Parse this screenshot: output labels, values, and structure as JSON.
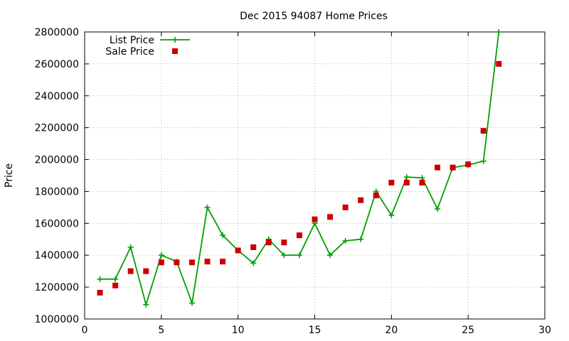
{
  "chart_data": {
    "type": "line",
    "title": "Dec 2015 94087 Home Prices",
    "xlabel": "",
    "ylabel": "Price",
    "xlim": [
      0,
      30
    ],
    "ylim": [
      1000000,
      2800000
    ],
    "xticks": [
      0,
      5,
      10,
      15,
      20,
      25,
      30
    ],
    "yticks": [
      1000000,
      1200000,
      1400000,
      1600000,
      1800000,
      2000000,
      2200000,
      2400000,
      2600000,
      2800000
    ],
    "grid": true,
    "legend_position": "top-left",
    "series": [
      {
        "name": "List Price",
        "kind": "line-with-plus-markers",
        "color": "#00a000",
        "x": [
          1,
          2,
          3,
          4,
          5,
          6,
          7,
          8,
          9,
          10,
          11,
          12,
          13,
          14,
          15,
          16,
          17,
          18,
          19,
          20,
          21,
          22,
          23,
          24,
          25,
          26,
          27
        ],
        "values": [
          1250000,
          1250000,
          1450000,
          1090000,
          1400000,
          1360000,
          1100000,
          1700000,
          1525000,
          1430000,
          1350000,
          1500000,
          1400000,
          1400000,
          1600000,
          1400000,
          1490000,
          1500000,
          1800000,
          1650000,
          1890000,
          1885000,
          1690000,
          1950000,
          1965000,
          1990000,
          2800000
        ]
      },
      {
        "name": "Sale Price",
        "kind": "square-markers",
        "color": "#cc0000",
        "x": [
          1,
          2,
          3,
          4,
          5,
          6,
          7,
          8,
          9,
          10,
          11,
          12,
          13,
          14,
          15,
          16,
          17,
          18,
          19,
          20,
          21,
          22,
          23,
          24,
          25,
          26,
          27
        ],
        "values": [
          1165000,
          1210000,
          1300000,
          1300000,
          1355000,
          1355000,
          1355000,
          1360000,
          1360000,
          1430000,
          1450000,
          1480000,
          1480000,
          1525000,
          1625000,
          1640000,
          1700000,
          1745000,
          1775000,
          1855000,
          1855000,
          1855000,
          1950000,
          1950000,
          1970000,
          2180000,
          2600000
        ]
      }
    ]
  }
}
